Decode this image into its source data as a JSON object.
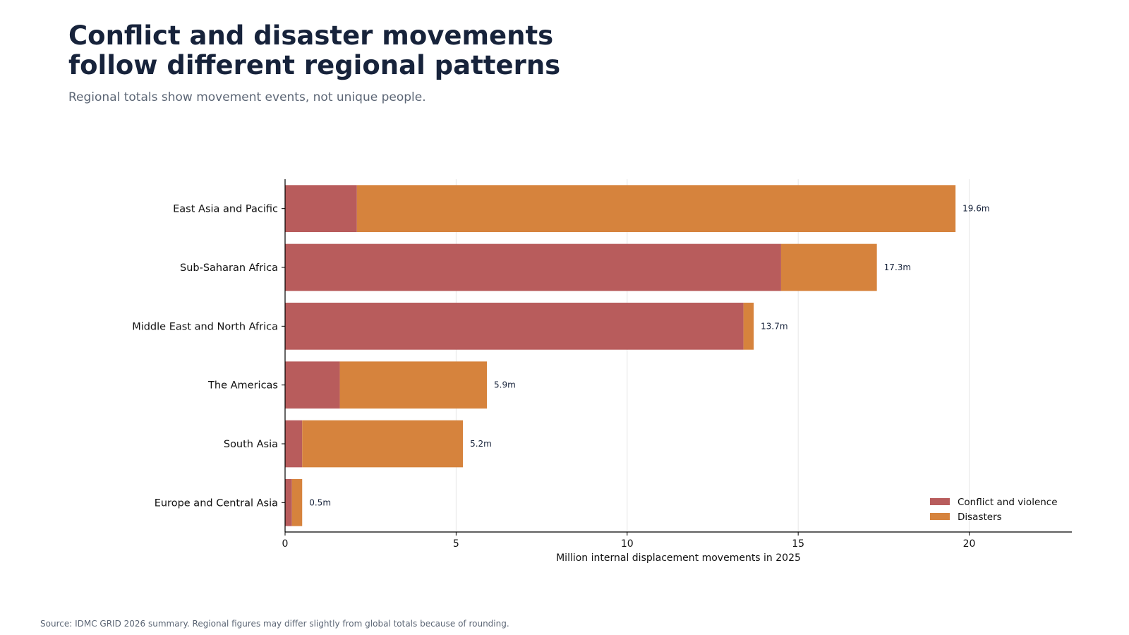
{
  "header": {
    "title_line1": "Conflict and disaster movements",
    "title_line2": "follow different regional patterns",
    "subtitle": "Regional totals show movement events, not unique people."
  },
  "footer": {
    "source": "Source: IDMC GRID 2026 summary. Regional figures may differ slightly from global totals because of rounding."
  },
  "colors": {
    "conflict": "#b85c5c",
    "disasters": "#d6833d",
    "title": "#17233b",
    "subtitle": "#5c6675",
    "grid": "#e6e6e6",
    "axis": "#000000"
  },
  "chart_data": {
    "type": "bar",
    "orientation": "horizontal",
    "stacked": true,
    "categories": [
      "East Asia and Pacific",
      "Sub-Saharan Africa",
      "Middle East and North Africa",
      "The Americas",
      "South Asia",
      "Europe and Central Asia"
    ],
    "series": [
      {
        "name": "Conflict and violence",
        "values": [
          2.1,
          14.5,
          13.4,
          1.6,
          0.5,
          0.2
        ]
      },
      {
        "name": "Disasters",
        "values": [
          17.5,
          2.8,
          0.3,
          4.3,
          4.7,
          0.3
        ]
      }
    ],
    "total_labels": [
      "19.6m",
      "17.3m",
      "13.7m",
      "5.9m",
      "5.2m",
      "0.5m"
    ],
    "xlabel": "Million internal displacement movements in 2025",
    "ylabel": "",
    "xlim": [
      0,
      23
    ],
    "xticks": [
      0,
      5,
      10,
      15,
      20
    ],
    "grid": "vertical",
    "legend": "bottom-right"
  }
}
